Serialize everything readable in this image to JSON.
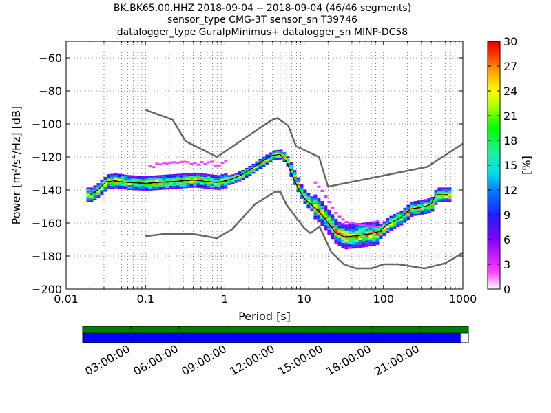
{
  "chart_data": [
    {
      "type": "heatmap",
      "title_lines": [
        "BK.BK65.00.HHZ   2018-09-04 -- 2018-09-04  (46/46 segments)",
        "sensor_type CMG-3T sensor_sn T39746",
        "datalogger_type GuralpMinimus+ datalogger_sn MINP-DC58"
      ],
      "xlabel": "Period [s]",
      "ylabel_prefix": "Power",
      "ylabel_units": "[m²/s⁴/Hz] [dB]",
      "xscale": "log",
      "xlim": [
        0.01,
        1000
      ],
      "ylim": [
        -200,
        -50
      ],
      "x_ticks": [
        {
          "value": 0.01,
          "label": "0.01"
        },
        {
          "value": 0.1,
          "label": "0.1"
        },
        {
          "value": 1,
          "label": "1"
        },
        {
          "value": 10,
          "label": "10"
        },
        {
          "value": 100,
          "label": "100"
        },
        {
          "value": 1000,
          "label": "1000"
        }
      ],
      "y_ticks": [
        {
          "value": -60,
          "label": "−60"
        },
        {
          "value": -80,
          "label": "−80"
        },
        {
          "value": -100,
          "label": "−100"
        },
        {
          "value": -120,
          "label": "−120"
        },
        {
          "value": -140,
          "label": "−140"
        },
        {
          "value": -160,
          "label": "−160"
        },
        {
          "value": -180,
          "label": "−180"
        },
        {
          "value": -200,
          "label": "−200"
        }
      ],
      "grid": true,
      "colorbar": {
        "label": "[%]",
        "range": [
          0,
          30
        ],
        "ticks": [
          {
            "value": 0,
            "label": "0"
          },
          {
            "value": 3,
            "label": "3"
          },
          {
            "value": 6,
            "label": "6"
          },
          {
            "value": 9,
            "label": "9"
          },
          {
            "value": 12,
            "label": "12"
          },
          {
            "value": 15,
            "label": "15"
          },
          {
            "value": 18,
            "label": "18"
          },
          {
            "value": 21,
            "label": "21"
          },
          {
            "value": 24,
            "label": "24"
          },
          {
            "value": 27,
            "label": "27"
          },
          {
            "value": 30,
            "label": "30"
          }
        ]
      },
      "series": [
        {
          "key": "nhnm",
          "color": "#666666",
          "points": [
            [
              0.1,
              -91.5
            ],
            [
              0.22,
              -97.4
            ],
            [
              0.32,
              -110.5
            ],
            [
              0.8,
              -120
            ],
            [
              3.8,
              -98
            ],
            [
              4.6,
              -96.5
            ],
            [
              6.3,
              -101
            ],
            [
              7.9,
              -113.5
            ],
            [
              15.4,
              -120
            ],
            [
              20,
              -138
            ],
            [
              354.8,
              -126
            ],
            [
              1000,
              -112
            ]
          ]
        },
        {
          "key": "nlnm",
          "color": "#666666",
          "points": [
            [
              0.1,
              -168
            ],
            [
              0.17,
              -166.7
            ],
            [
              0.4,
              -166.7
            ],
            [
              0.8,
              -169.2
            ],
            [
              1.24,
              -163.7
            ],
            [
              2.4,
              -148.6
            ],
            [
              4.3,
              -141.1
            ],
            [
              5,
              -141.1
            ],
            [
              6,
              -149
            ],
            [
              10,
              -163
            ],
            [
              12,
              -166.2
            ],
            [
              15.6,
              -162.1
            ],
            [
              21.9,
              -177.5
            ],
            [
              31.6,
              -185
            ],
            [
              45,
              -187.5
            ],
            [
              70,
              -187.5
            ],
            [
              101,
              -185
            ],
            [
              154,
              -185
            ],
            [
              328,
              -187.5
            ],
            [
              600,
              -184.4
            ],
            [
              1000,
              -178
            ]
          ]
        },
        {
          "key": "mode",
          "color": "#000000",
          "points": [
            [
              0.02,
              -143
            ],
            [
              0.025,
              -140
            ],
            [
              0.032,
              -135
            ],
            [
              0.04,
              -134.5
            ],
            [
              0.06,
              -135.5
            ],
            [
              0.1,
              -136
            ],
            [
              0.2,
              -135
            ],
            [
              0.4,
              -134
            ],
            [
              0.8,
              -135.5
            ],
            [
              1.2,
              -133.5
            ],
            [
              1.6,
              -131
            ],
            [
              2.2,
              -127
            ],
            [
              3,
              -122.5
            ],
            [
              4,
              -119
            ],
            [
              5,
              -118.5
            ],
            [
              6,
              -123
            ],
            [
              7,
              -131
            ],
            [
              8.5,
              -139.5
            ],
            [
              10,
              -145
            ],
            [
              13,
              -150
            ],
            [
              16,
              -154
            ],
            [
              20,
              -160
            ],
            [
              25,
              -166
            ],
            [
              32,
              -168.5
            ],
            [
              50,
              -167.5
            ],
            [
              70,
              -166.5
            ],
            [
              90,
              -165
            ],
            [
              110,
              -161
            ],
            [
              160,
              -157
            ],
            [
              220,
              -151.5
            ],
            [
              330,
              -150
            ],
            [
              400,
              -148.5
            ],
            [
              450,
              -143
            ],
            [
              650,
              -143
            ]
          ]
        }
      ]
    },
    {
      "type": "timeline",
      "x_tick_labels": [
        "03:00:00",
        "06:00:00",
        "09:00:00",
        "12:00:00",
        "15:00:00",
        "18:00:00",
        "21:00:00"
      ],
      "row1_color": "#008000",
      "row1_coverage_fraction": 1.0,
      "row2_color": "#0000ff",
      "row2_coverage_fraction": 0.98
    }
  ]
}
